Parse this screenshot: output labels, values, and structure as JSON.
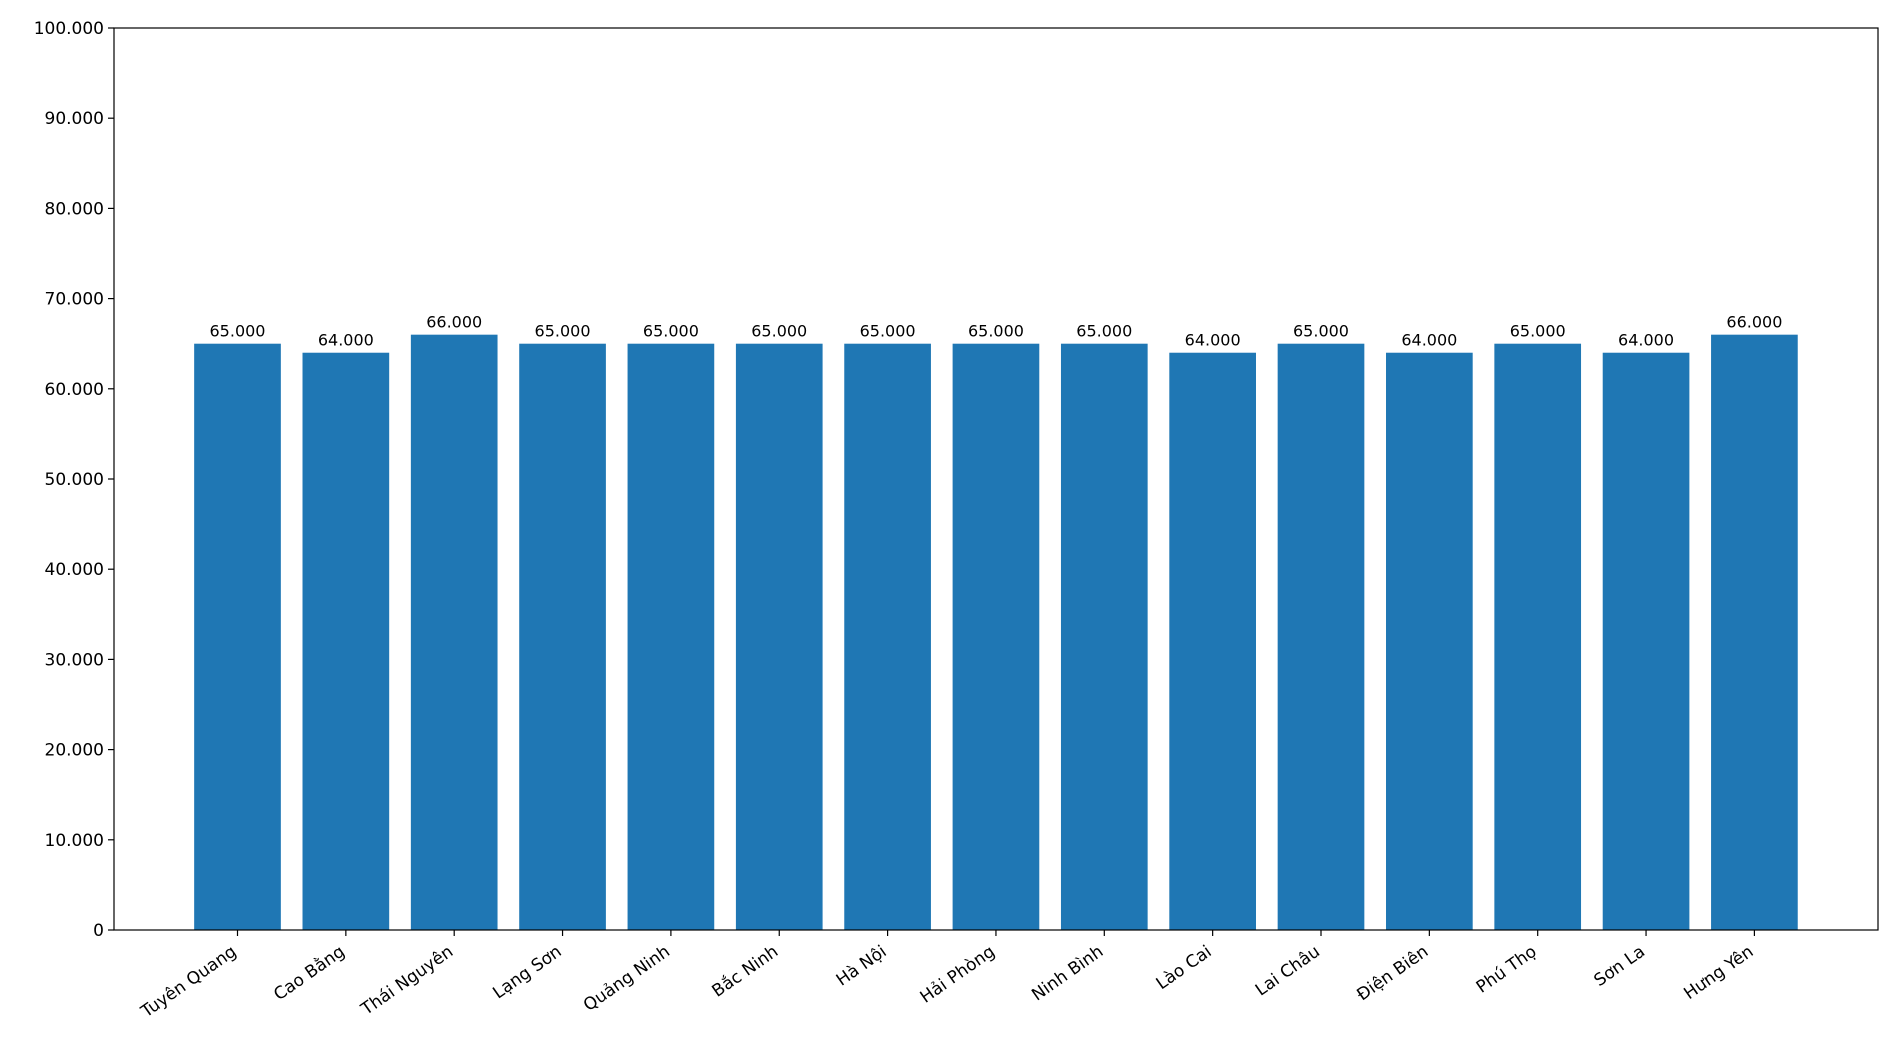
{
  "chart_data": {
    "type": "bar",
    "categories": [
      "Tuyên Quang",
      "Cao Bằng",
      "Thái Nguyên",
      "Lạng Sơn",
      "Quảng Ninh",
      "Bắc Ninh",
      "Hà Nội",
      "Hải Phòng",
      "Ninh Bình",
      "Lào Cai",
      "Lai Châu",
      "Điện Biên",
      "Phú Thọ",
      "Sơn La",
      "Hưng Yên"
    ],
    "values": [
      65000,
      64000,
      66000,
      65000,
      65000,
      65000,
      65000,
      65000,
      65000,
      64000,
      65000,
      64000,
      65000,
      64000,
      66000
    ],
    "value_labels": [
      "65.000",
      "64.000",
      "66.000",
      "65.000",
      "65.000",
      "65.000",
      "65.000",
      "65.000",
      "65.000",
      "64.000",
      "65.000",
      "64.000",
      "65.000",
      "64.000",
      "66.000"
    ],
    "color": "#1f77b4",
    "ylim": [
      0,
      100000
    ],
    "yticks": [
      0,
      {
        "value": 10000,
        "label": "10.000"
      },
      {
        "value": 20000,
        "label": "20.000"
      },
      {
        "value": 30000,
        "label": "30.000"
      },
      {
        "value": 40000,
        "label": "40.000"
      },
      {
        "value": 50000,
        "label": "50.000"
      },
      {
        "value": 60000,
        "label": "60.000"
      },
      {
        "value": 70000,
        "label": "70.000"
      },
      {
        "value": 80000,
        "label": "80.000"
      },
      {
        "value": 90000,
        "label": "90.000"
      },
      {
        "value": 100000,
        "label": "100.000"
      }
    ],
    "grid": false
  }
}
